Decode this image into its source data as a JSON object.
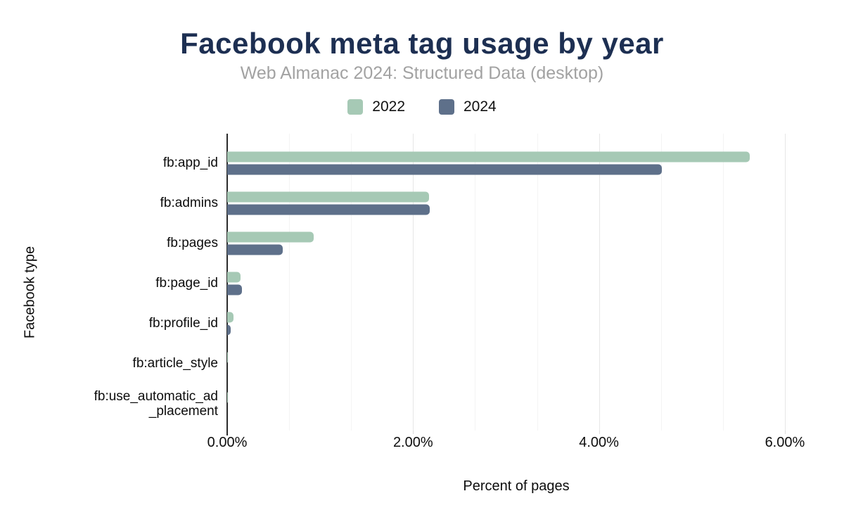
{
  "title": "Facebook meta tag usage by year",
  "subtitle": "Web Almanac 2024: Structured Data (desktop)",
  "colors": {
    "title": "#1d2f52",
    "subtitle": "#a2a2a2",
    "series_2022": "#a6c9b5",
    "series_2024": "#5e708a",
    "axis_line": "#2b2b2b",
    "grid_major": "#e6e6e6",
    "grid_minor": "#f4f4f4",
    "text": "#0d0d0d",
    "background": "#ffffff"
  },
  "legend": {
    "items": [
      {
        "label": "2022",
        "color": "#a6c9b5"
      },
      {
        "label": "2024",
        "color": "#5e708a"
      }
    ]
  },
  "chart_data": {
    "type": "bar",
    "orientation": "horizontal",
    "title": "Facebook meta tag usage by year",
    "subtitle": "Web Almanac 2024: Structured Data (desktop)",
    "xlabel": "Percent of pages",
    "ylabel": "Facebook type",
    "categories": [
      "fb:app_id",
      "fb:admins",
      "fb:pages",
      "fb:page_id",
      "fb:profile_id",
      "fb:article_style",
      "fb:use_automatic_ad_placement"
    ],
    "category_display_lines": [
      [
        "fb:app_id"
      ],
      [
        "fb:admins"
      ],
      [
        "fb:pages"
      ],
      [
        "fb:page_id"
      ],
      [
        "fb:profile_id"
      ],
      [
        "fb:article_style"
      ],
      [
        "fb:use_automatic_ad",
        "_placement"
      ]
    ],
    "series": [
      {
        "name": "2022",
        "color": "#a6c9b5",
        "values": [
          5.62,
          2.17,
          0.93,
          0.14,
          0.07,
          0.01,
          0.01
        ]
      },
      {
        "name": "2024",
        "color": "#5e708a",
        "values": [
          4.68,
          2.18,
          0.6,
          0.16,
          0.04,
          0.0,
          0.0
        ]
      }
    ],
    "xlim": [
      0,
      6.22
    ],
    "x_ticks": [
      {
        "value": 0,
        "label": "0.00%"
      },
      {
        "value": 2,
        "label": "2.00%"
      },
      {
        "value": 4,
        "label": "4.00%"
      },
      {
        "value": 6,
        "label": "6.00%"
      }
    ],
    "minor_grid_step": 0.6666667,
    "grid": "vertical minor gridlines every 0.667%, majors at 2%, 4%, 6%",
    "legend_position": "top"
  }
}
